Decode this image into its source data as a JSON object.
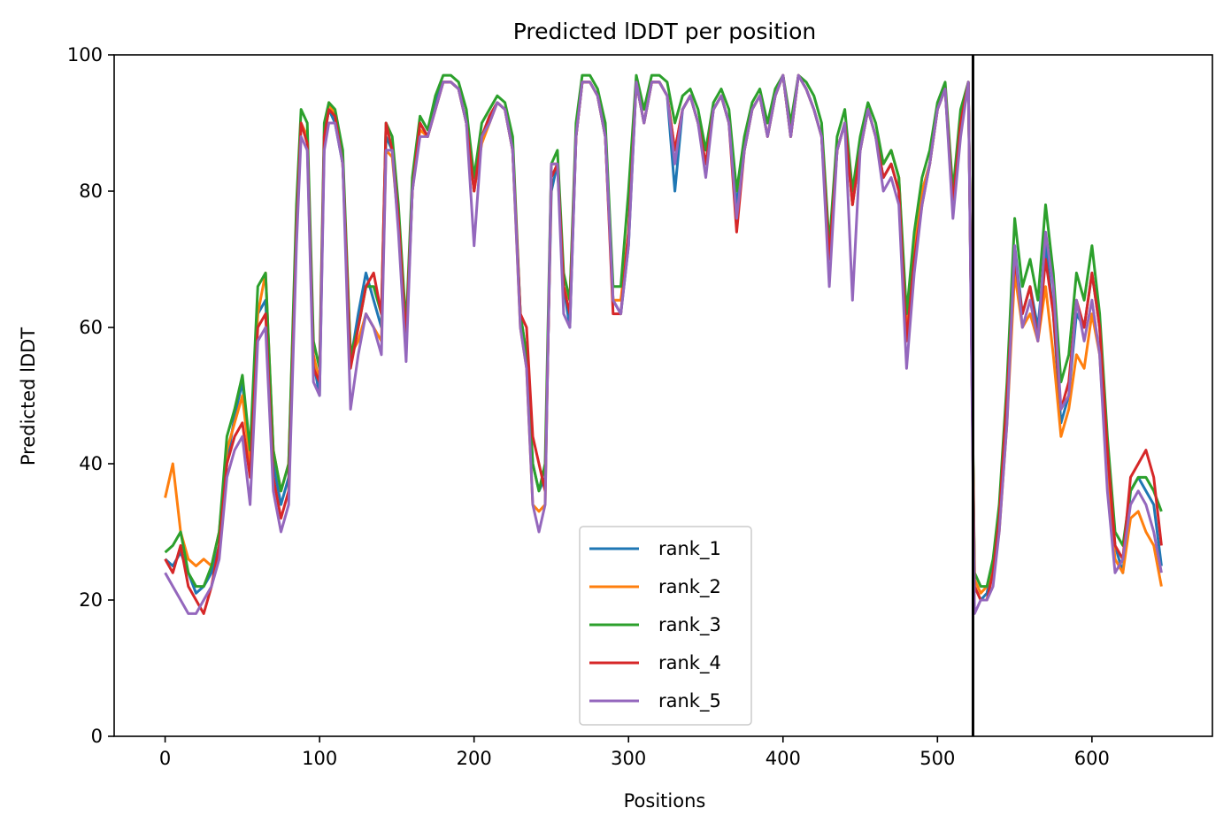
{
  "chart_data": {
    "type": "line",
    "title": "Predicted lDDT per position",
    "xlabel": "Positions",
    "ylabel": "Predicted lDDT",
    "xlim": [
      -33,
      678
    ],
    "ylim": [
      0,
      100
    ],
    "xticks": [
      0,
      100,
      200,
      300,
      400,
      500,
      600
    ],
    "yticks": [
      0,
      20,
      40,
      60,
      80,
      100
    ],
    "xtick_labels": [
      "0",
      "100",
      "200",
      "300",
      "400",
      "500",
      "600"
    ],
    "ytick_labels": [
      "0",
      "20",
      "40",
      "60",
      "80",
      "100"
    ],
    "grid": false,
    "legend_position": "bottom-center",
    "chain_break": 523,
    "chain_break_color": "#000000",
    "x": [
      0,
      5,
      10,
      15,
      20,
      25,
      30,
      35,
      40,
      45,
      50,
      55,
      60,
      65,
      70,
      75,
      80,
      85,
      88,
      92,
      96,
      100,
      103,
      106,
      110,
      115,
      120,
      125,
      130,
      135,
      140,
      143,
      147,
      151,
      156,
      160,
      165,
      170,
      175,
      180,
      185,
      190,
      195,
      200,
      205,
      210,
      215,
      220,
      225,
      230,
      234,
      238,
      242,
      246,
      250,
      254,
      258,
      262,
      266,
      270,
      275,
      280,
      285,
      290,
      295,
      300,
      305,
      310,
      315,
      320,
      325,
      330,
      335,
      340,
      345,
      350,
      355,
      360,
      365,
      370,
      375,
      380,
      385,
      390,
      395,
      400,
      405,
      410,
      415,
      420,
      425,
      430,
      435,
      440,
      445,
      450,
      455,
      460,
      465,
      470,
      475,
      480,
      485,
      490,
      495,
      500,
      505,
      510,
      515,
      520,
      524,
      528,
      532,
      536,
      540,
      545,
      550,
      555,
      560,
      565,
      570,
      575,
      580,
      585,
      590,
      595,
      600,
      605,
      610,
      615,
      620,
      625,
      630,
      635,
      640,
      645
    ],
    "series": [
      {
        "name": "rank_1",
        "color": "#1f77b4",
        "values": [
          26,
          25,
          27,
          24,
          21,
          22,
          24,
          28,
          40,
          47,
          52,
          40,
          62,
          64,
          40,
          34,
          38,
          75,
          90,
          88,
          55,
          50,
          88,
          92,
          90,
          84,
          55,
          62,
          68,
          64,
          60,
          88,
          86,
          76,
          58,
          80,
          90,
          88,
          93,
          96,
          96,
          95,
          90,
          80,
          88,
          91,
          93,
          92,
          86,
          62,
          56,
          40,
          36,
          38,
          80,
          84,
          66,
          60,
          88,
          96,
          96,
          94,
          88,
          64,
          62,
          72,
          96,
          90,
          96,
          96,
          94,
          80,
          92,
          94,
          90,
          84,
          92,
          94,
          90,
          78,
          86,
          92,
          94,
          88,
          94,
          97,
          88,
          97,
          95,
          92,
          88,
          70,
          86,
          90,
          78,
          86,
          92,
          88,
          82,
          84,
          80,
          60,
          72,
          80,
          84,
          92,
          95,
          78,
          90,
          96,
          22,
          20,
          21,
          25,
          32,
          48,
          72,
          62,
          66,
          60,
          72,
          62,
          46,
          50,
          62,
          60,
          68,
          60,
          40,
          28,
          24,
          36,
          38,
          36,
          34,
          25
        ]
      },
      {
        "name": "rank_2",
        "color": "#ff7f0e",
        "values": [
          35,
          40,
          30,
          26,
          25,
          26,
          25,
          30,
          42,
          46,
          50,
          40,
          62,
          68,
          42,
          36,
          40,
          76,
          90,
          88,
          56,
          52,
          88,
          93,
          91,
          84,
          56,
          58,
          62,
          60,
          58,
          86,
          85,
          75,
          57,
          80,
          89,
          88,
          92,
          96,
          96,
          95,
          90,
          80,
          87,
          90,
          93,
          92,
          86,
          60,
          54,
          34,
          33,
          34,
          84,
          84,
          66,
          64,
          88,
          96,
          96,
          94,
          88,
          64,
          64,
          74,
          96,
          90,
          96,
          96,
          94,
          86,
          92,
          94,
          90,
          84,
          92,
          94,
          90,
          80,
          86,
          92,
          94,
          88,
          94,
          97,
          88,
          97,
          95,
          92,
          88,
          70,
          86,
          90,
          78,
          86,
          92,
          88,
          84,
          86,
          82,
          60,
          72,
          80,
          84,
          92,
          95,
          78,
          90,
          96,
          23,
          21,
          22,
          24,
          30,
          46,
          68,
          60,
          62,
          58,
          66,
          56,
          44,
          48,
          56,
          54,
          62,
          56,
          38,
          26,
          24,
          32,
          33,
          30,
          28,
          22
        ]
      },
      {
        "name": "rank_3",
        "color": "#2ca02c",
        "values": [
          27,
          28,
          30,
          24,
          22,
          22,
          25,
          30,
          44,
          48,
          53,
          42,
          66,
          68,
          42,
          36,
          40,
          78,
          92,
          90,
          58,
          54,
          90,
          93,
          92,
          86,
          56,
          60,
          66,
          66,
          62,
          90,
          88,
          78,
          60,
          82,
          91,
          89,
          94,
          97,
          97,
          96,
          92,
          82,
          90,
          92,
          94,
          93,
          88,
          62,
          56,
          40,
          36,
          40,
          84,
          86,
          68,
          64,
          90,
          97,
          97,
          95,
          90,
          66,
          66,
          80,
          97,
          92,
          97,
          97,
          96,
          90,
          94,
          95,
          92,
          86,
          93,
          95,
          92,
          80,
          88,
          93,
          95,
          90,
          95,
          97,
          90,
          97,
          96,
          94,
          90,
          72,
          88,
          92,
          80,
          88,
          93,
          90,
          84,
          86,
          82,
          62,
          74,
          82,
          86,
          93,
          96,
          80,
          92,
          96,
          24,
          22,
          22,
          26,
          34,
          52,
          76,
          66,
          70,
          64,
          78,
          68,
          52,
          56,
          68,
          64,
          72,
          62,
          44,
          30,
          28,
          36,
          38,
          38,
          36,
          33
        ]
      },
      {
        "name": "rank_4",
        "color": "#d62728",
        "values": [
          26,
          24,
          28,
          22,
          20,
          18,
          22,
          28,
          40,
          44,
          46,
          38,
          60,
          62,
          38,
          32,
          36,
          74,
          90,
          87,
          54,
          52,
          88,
          92,
          91,
          84,
          54,
          60,
          66,
          68,
          62,
          90,
          86,
          76,
          58,
          80,
          90,
          88,
          92,
          96,
          96,
          95,
          90,
          80,
          88,
          91,
          93,
          92,
          86,
          62,
          60,
          44,
          40,
          36,
          82,
          84,
          66,
          62,
          88,
          96,
          96,
          94,
          88,
          62,
          62,
          74,
          96,
          90,
          96,
          96,
          94,
          86,
          92,
          94,
          90,
          84,
          92,
          94,
          90,
          74,
          86,
          92,
          94,
          88,
          94,
          97,
          88,
          97,
          95,
          92,
          88,
          70,
          86,
          90,
          78,
          86,
          92,
          88,
          82,
          84,
          80,
          58,
          70,
          78,
          84,
          92,
          95,
          78,
          90,
          96,
          22,
          20,
          20,
          24,
          32,
          50,
          70,
          62,
          66,
          58,
          70,
          62,
          48,
          52,
          64,
          60,
          68,
          60,
          42,
          28,
          26,
          38,
          40,
          42,
          38,
          28
        ]
      },
      {
        "name": "rank_5",
        "color": "#9467bd",
        "values": [
          24,
          22,
          20,
          18,
          18,
          20,
          22,
          26,
          38,
          42,
          44,
          34,
          58,
          60,
          36,
          30,
          34,
          72,
          88,
          86,
          52,
          50,
          86,
          90,
          90,
          84,
          48,
          56,
          62,
          60,
          56,
          86,
          86,
          74,
          55,
          80,
          88,
          88,
          92,
          96,
          96,
          95,
          90,
          72,
          88,
          90,
          93,
          92,
          86,
          60,
          54,
          34,
          30,
          34,
          84,
          84,
          62,
          60,
          88,
          96,
          96,
          94,
          88,
          64,
          62,
          72,
          96,
          90,
          96,
          96,
          94,
          84,
          92,
          94,
          90,
          82,
          92,
          94,
          90,
          76,
          86,
          92,
          94,
          88,
          94,
          97,
          88,
          97,
          95,
          92,
          88,
          66,
          86,
          90,
          64,
          86,
          92,
          88,
          80,
          82,
          78,
          54,
          68,
          78,
          84,
          92,
          95,
          76,
          88,
          96,
          18,
          20,
          20,
          22,
          30,
          46,
          72,
          60,
          64,
          58,
          74,
          66,
          48,
          50,
          64,
          58,
          64,
          56,
          36,
          24,
          26,
          34,
          36,
          34,
          30,
          24
        ]
      }
    ]
  }
}
